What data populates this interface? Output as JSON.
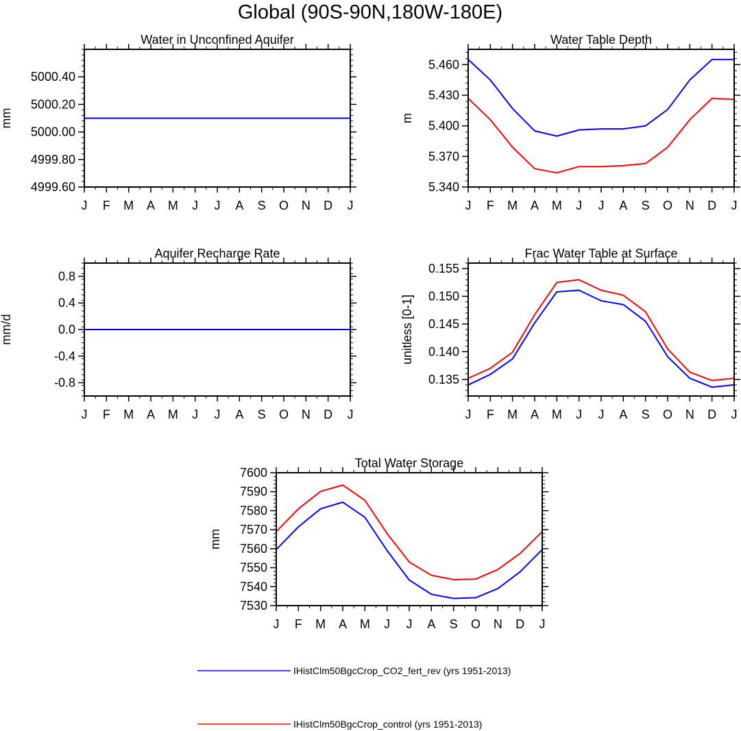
{
  "page_title": "Global (90S-90N,180W-180E)",
  "months": [
    "J",
    "F",
    "M",
    "A",
    "M",
    "J",
    "J",
    "A",
    "S",
    "O",
    "N",
    "D",
    "J"
  ],
  "colors": {
    "series_a": "#0000ff",
    "series_b": "#ff0000",
    "axis": "#000000"
  },
  "legend": [
    {
      "label": "IHistClm50BgcCrop_CO2_fert_rev (yrs 1951-2013)",
      "color": "#0000ff"
    },
    {
      "label": "IHistClm50BgcCrop_control (yrs 1951-2013)",
      "color": "#ff0000"
    }
  ],
  "chart_data": [
    {
      "type": "line",
      "title": "Water in Unconfined Aquifer",
      "xlabel": "",
      "ylabel": "mm",
      "categories": [
        "J",
        "F",
        "M",
        "A",
        "M",
        "J",
        "J",
        "A",
        "S",
        "O",
        "N",
        "D",
        "J"
      ],
      "ylim": [
        4999.6,
        5000.6
      ],
      "yticks": [
        "4999.60",
        "4999.80",
        "5000.00",
        "5000.20",
        "5000.40"
      ],
      "series": [
        {
          "color": "#ff0000",
          "values": [
            5000.1,
            5000.1,
            5000.1,
            5000.1,
            5000.1,
            5000.1,
            5000.1,
            5000.1,
            5000.1,
            5000.1,
            5000.1,
            5000.1,
            5000.1
          ]
        },
        {
          "color": "#0000ff",
          "values": [
            5000.1,
            5000.1,
            5000.1,
            5000.1,
            5000.1,
            5000.1,
            5000.1,
            5000.1,
            5000.1,
            5000.1,
            5000.1,
            5000.1,
            5000.1
          ]
        }
      ]
    },
    {
      "type": "line",
      "title": "Water Table Depth",
      "xlabel": "",
      "ylabel": "m",
      "categories": [
        "J",
        "F",
        "M",
        "A",
        "M",
        "J",
        "J",
        "A",
        "S",
        "O",
        "N",
        "D",
        "J"
      ],
      "ylim": [
        5.34,
        5.475
      ],
      "yticks": [
        "5.340",
        "5.370",
        "5.400",
        "5.430",
        "5.460"
      ],
      "series": [
        {
          "color": "#0000ff",
          "values": [
            5.465,
            5.445,
            5.417,
            5.395,
            5.39,
            5.396,
            5.397,
            5.397,
            5.4,
            5.416,
            5.445,
            5.465,
            5.465
          ]
        },
        {
          "color": "#ff0000",
          "values": [
            5.427,
            5.406,
            5.379,
            5.358,
            5.354,
            5.36,
            5.36,
            5.361,
            5.363,
            5.379,
            5.406,
            5.427,
            5.426
          ]
        }
      ]
    },
    {
      "type": "line",
      "title": "Aquifer Recharge Rate",
      "xlabel": "",
      "ylabel": "mm/d",
      "categories": [
        "J",
        "F",
        "M",
        "A",
        "M",
        "J",
        "J",
        "A",
        "S",
        "O",
        "N",
        "D",
        "J"
      ],
      "ylim": [
        -1.0,
        1.0
      ],
      "yticks": [
        "-0.8",
        "-0.4",
        "0.0",
        "0.4",
        "0.8"
      ],
      "series": [
        {
          "color": "#ff0000",
          "values": [
            0,
            0,
            0,
            0,
            0,
            0,
            0,
            0,
            0,
            0,
            0,
            0,
            0
          ]
        },
        {
          "color": "#0000ff",
          "values": [
            0,
            0,
            0,
            0,
            0,
            0,
            0,
            0,
            0,
            0,
            0,
            0,
            0
          ]
        }
      ]
    },
    {
      "type": "line",
      "title": "Frac Water Table at Surface",
      "xlabel": "",
      "ylabel": "unitless [0-1]",
      "categories": [
        "J",
        "F",
        "M",
        "A",
        "M",
        "J",
        "J",
        "A",
        "S",
        "O",
        "N",
        "D",
        "J"
      ],
      "ylim": [
        0.132,
        0.156
      ],
      "yticks": [
        "0.135",
        "0.140",
        "0.145",
        "0.150",
        "0.155"
      ],
      "series": [
        {
          "color": "#0000ff",
          "values": [
            0.134,
            0.1359,
            0.1387,
            0.1452,
            0.1508,
            0.1511,
            0.1492,
            0.1485,
            0.1455,
            0.1391,
            0.1352,
            0.1336,
            0.134
          ]
        },
        {
          "color": "#ff0000",
          "values": [
            0.1352,
            0.137,
            0.1399,
            0.1467,
            0.1525,
            0.153,
            0.1511,
            0.1502,
            0.1472,
            0.1405,
            0.1363,
            0.1348,
            0.1352
          ]
        }
      ]
    },
    {
      "type": "line",
      "title": "Total Water Storage",
      "xlabel": "",
      "ylabel": "mm",
      "categories": [
        "J",
        "F",
        "M",
        "A",
        "M",
        "J",
        "J",
        "A",
        "S",
        "O",
        "N",
        "D",
        "J"
      ],
      "ylim": [
        7530,
        7600
      ],
      "yticks": [
        "7530",
        "7540",
        "7550",
        "7560",
        "7570",
        "7580",
        "7590",
        "7600"
      ],
      "series": [
        {
          "color": "#0000ff",
          "values": [
            7559.5,
            7571.5,
            7581.0,
            7584.5,
            7576.5,
            7559.0,
            7543.5,
            7536.0,
            7533.8,
            7534.2,
            7539.0,
            7547.8,
            7559.5
          ]
        },
        {
          "color": "#ff0000",
          "values": [
            7569.0,
            7581.0,
            7590.2,
            7593.5,
            7585.5,
            7568.0,
            7553.0,
            7546.0,
            7543.7,
            7544.0,
            7549.0,
            7557.5,
            7569.0
          ]
        }
      ]
    }
  ]
}
